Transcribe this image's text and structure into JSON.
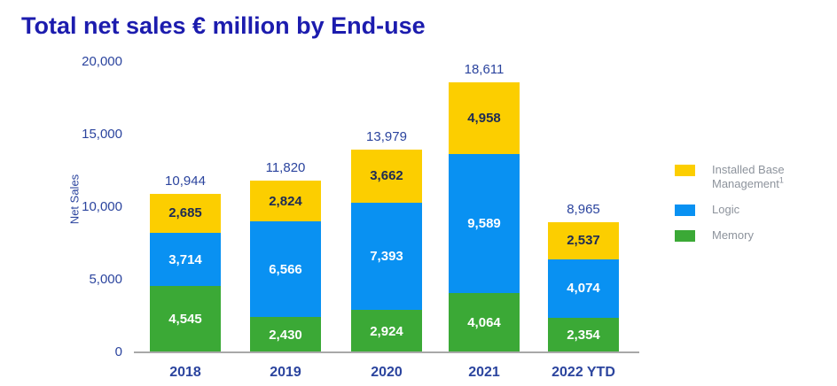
{
  "title": "Total net sales € million by End-use",
  "chart_data": {
    "type": "bar",
    "stacked": true,
    "title": "Total net sales € million by End-use",
    "xlabel": "",
    "ylabel": "Net Sales",
    "categories": [
      "2018",
      "2019",
      "2020",
      "2021",
      "2022 YTD"
    ],
    "series": [
      {
        "name": "Memory",
        "color": "#3BA936",
        "label_color": "#FFFFFF",
        "values": [
          4545,
          2430,
          2924,
          4064,
          2354
        ]
      },
      {
        "name": "Logic",
        "color": "#0991F2",
        "label_color": "#FFFFFF",
        "values": [
          3714,
          6566,
          7393,
          9589,
          4074
        ]
      },
      {
        "name": "Installed Base Management",
        "footnote_marker": "1",
        "color": "#FCCE00",
        "label_color": "#1D2B55",
        "values": [
          2685,
          2824,
          3662,
          4958,
          2537
        ]
      }
    ],
    "totals": [
      10944,
      11820,
      13979,
      18611,
      8965
    ],
    "ylim": [
      0,
      20000
    ],
    "yticks": [
      0,
      5000,
      10000,
      15000,
      20000
    ],
    "grid": false,
    "legend_position": "right"
  },
  "legend": {
    "items": [
      {
        "key": "installed-base-management",
        "color": "#FCCE00",
        "lines": [
          "Installed Base",
          "Management"
        ],
        "superscript": "1"
      },
      {
        "key": "logic",
        "color": "#0991F2",
        "lines": [
          "Logic"
        ],
        "superscript": ""
      },
      {
        "key": "memory",
        "color": "#3BA936",
        "lines": [
          "Memory"
        ],
        "superscript": ""
      }
    ]
  },
  "colors": {
    "title": "#1C1CAE",
    "axis_text": "#2B449E",
    "segment_label_dark": "#1D2B55",
    "segment_label_light": "#FFFFFF",
    "legend_text": "#8D939C",
    "axis_line": "#A8A8A8",
    "background": "#FFFFFF"
  }
}
